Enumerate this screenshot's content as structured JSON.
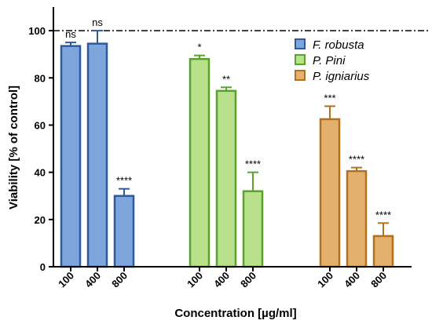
{
  "chart_data": {
    "type": "bar",
    "xlabel": "Concentration  [µg/ml]",
    "ylabel": "Viability [% of control]",
    "ylim": [
      0,
      110
    ],
    "yticks": [
      0,
      20,
      40,
      60,
      80,
      100
    ],
    "reference_line": 100,
    "grid": false,
    "legend_position": "top-right",
    "series": [
      {
        "name": "F. robusta",
        "fill": "#7fa6dc",
        "stroke": "#2e5a9c",
        "categories": [
          "100",
          "400",
          "800"
        ],
        "values": [
          93.5,
          94.5,
          30
        ],
        "errors": [
          1.5,
          5.5,
          3
        ],
        "significance": [
          "ns",
          "ns",
          "****"
        ]
      },
      {
        "name": "P. Pini",
        "fill": "#b9e08a",
        "stroke": "#5aa12e",
        "categories": [
          "100",
          "400",
          "800"
        ],
        "values": [
          88,
          74.5,
          32
        ],
        "errors": [
          1.5,
          1.5,
          8
        ],
        "significance": [
          "*",
          "**",
          "****"
        ]
      },
      {
        "name": "P. igniarius",
        "fill": "#e4b06e",
        "stroke": "#b3701f",
        "categories": [
          "100",
          "400",
          "800"
        ],
        "values": [
          62.5,
          40.5,
          13
        ],
        "errors": [
          5.5,
          1.5,
          5.5
        ],
        "significance": [
          "***",
          "****",
          "****"
        ]
      }
    ]
  }
}
